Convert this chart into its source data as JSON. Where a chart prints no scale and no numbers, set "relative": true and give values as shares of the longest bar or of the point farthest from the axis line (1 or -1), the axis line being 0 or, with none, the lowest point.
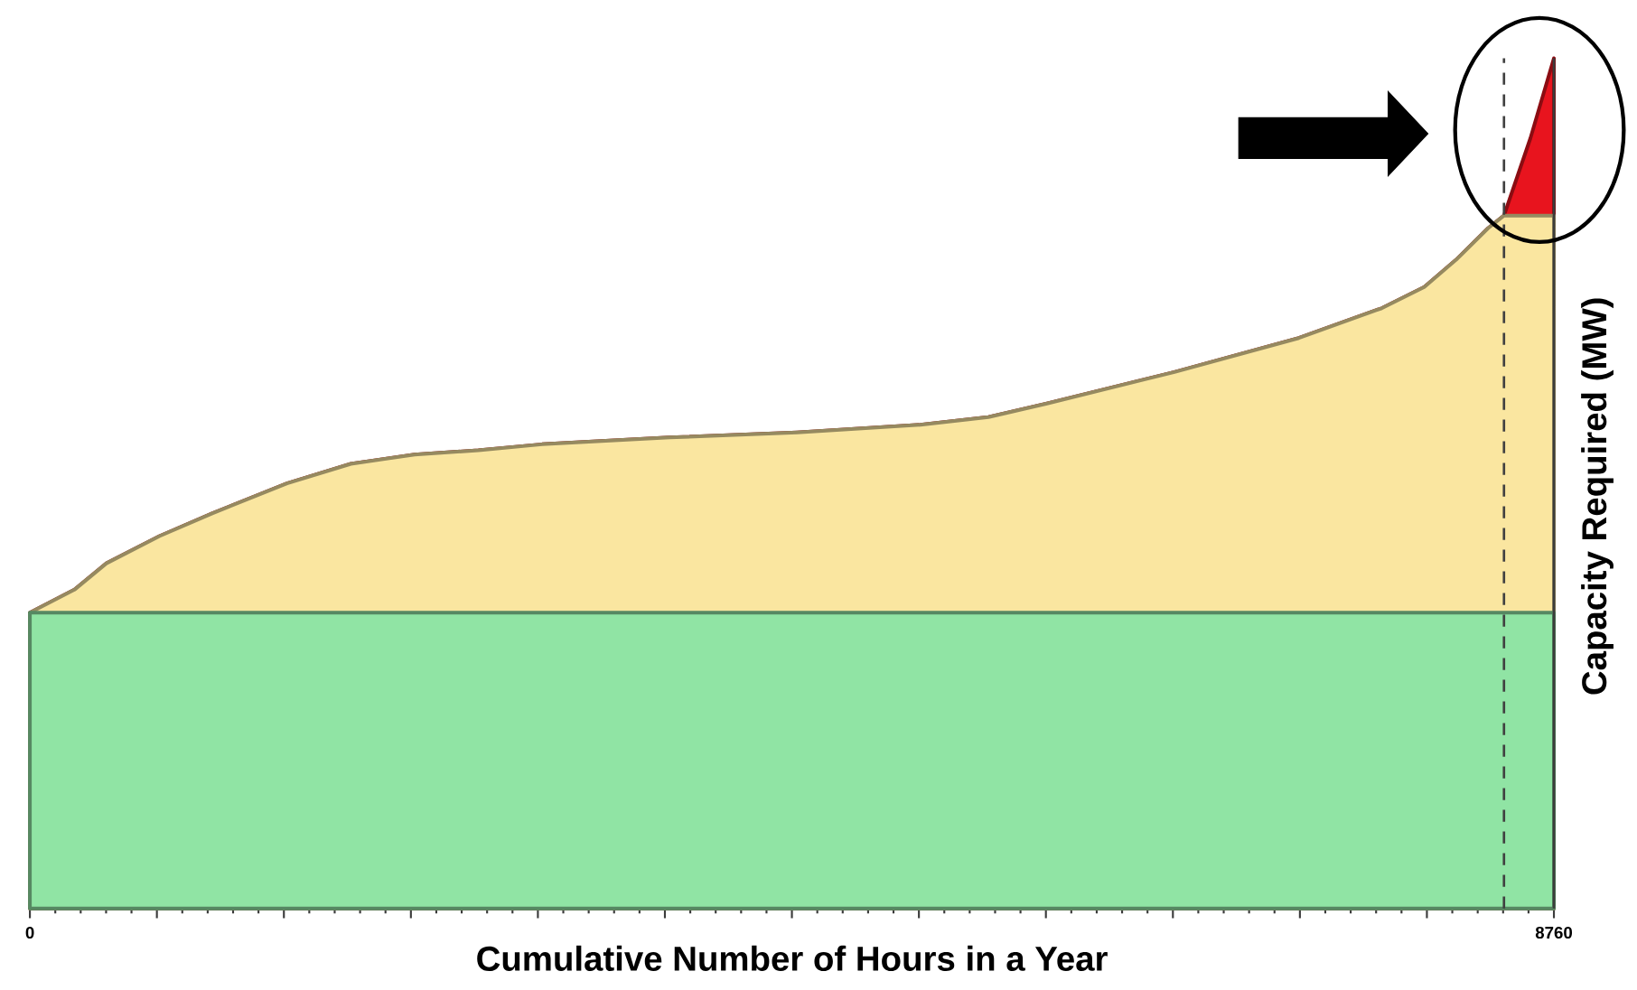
{
  "chart_data": {
    "type": "area",
    "relative": true,
    "xlabel": "Cumulative Number of Hours in a Year",
    "ylabel": "Capacity Required (MW)",
    "xlim": [
      0,
      8760
    ],
    "xticks": [
      0,
      {
        "value": 730,
        "label": null
      },
      {
        "value": 1460,
        "label": null
      },
      {
        "value": 2190,
        "label": null
      },
      {
        "value": 2920,
        "label": null
      },
      {
        "value": 3650,
        "label": null
      },
      {
        "value": 4380,
        "label": null
      },
      {
        "value": 5110,
        "label": null
      },
      {
        "value": 5840,
        "label": null
      },
      {
        "value": 6570,
        "label": null
      },
      {
        "value": 7300,
        "label": null
      },
      {
        "value": 8030,
        "label": null
      },
      8760
    ],
    "x": [
      0,
      256,
      440,
      745,
      1051,
      1478,
      1845,
      2211,
      2578,
      2944,
      3677,
      4410,
      5119,
      5510,
      5846,
      6579,
      7294,
      7770,
      8015,
      8198,
      8381,
      8473,
      8625,
      8760
    ],
    "series": [
      {
        "color": "#e8141e",
        "values": [
          0.348,
          0.375,
          0.406,
          0.438,
          0.465,
          0.5,
          0.523,
          0.534,
          0.539,
          0.546,
          0.554,
          0.56,
          0.569,
          0.578,
          0.594,
          0.631,
          0.671,
          0.706,
          0.731,
          0.763,
          0.8,
          0.815,
          0.906,
          1.0
        ]
      },
      {
        "color": "#fae6a0",
        "values": [
          0.348,
          0.375,
          0.406,
          0.438,
          0.465,
          0.5,
          0.523,
          0.534,
          0.539,
          0.546,
          0.554,
          0.56,
          0.569,
          0.578,
          0.594,
          0.631,
          0.671,
          0.706,
          0.731,
          0.763,
          0.8,
          0.815,
          0.815,
          0.815
        ]
      },
      {
        "color": "#90e4a4",
        "values": [
          0.348,
          0.348,
          0.348,
          0.348,
          0.348,
          0.348,
          0.348,
          0.348,
          0.348,
          0.348,
          0.348,
          0.348,
          0.348,
          0.348,
          0.348,
          0.348,
          0.348,
          0.348,
          0.348,
          0.348,
          0.348,
          0.348,
          0.348,
          0.348
        ]
      }
    ],
    "ref_lines": [
      {
        "axis": "x",
        "value": 8473,
        "color": "#404040",
        "line_style": "dashed"
      }
    ],
    "grid": false
  }
}
